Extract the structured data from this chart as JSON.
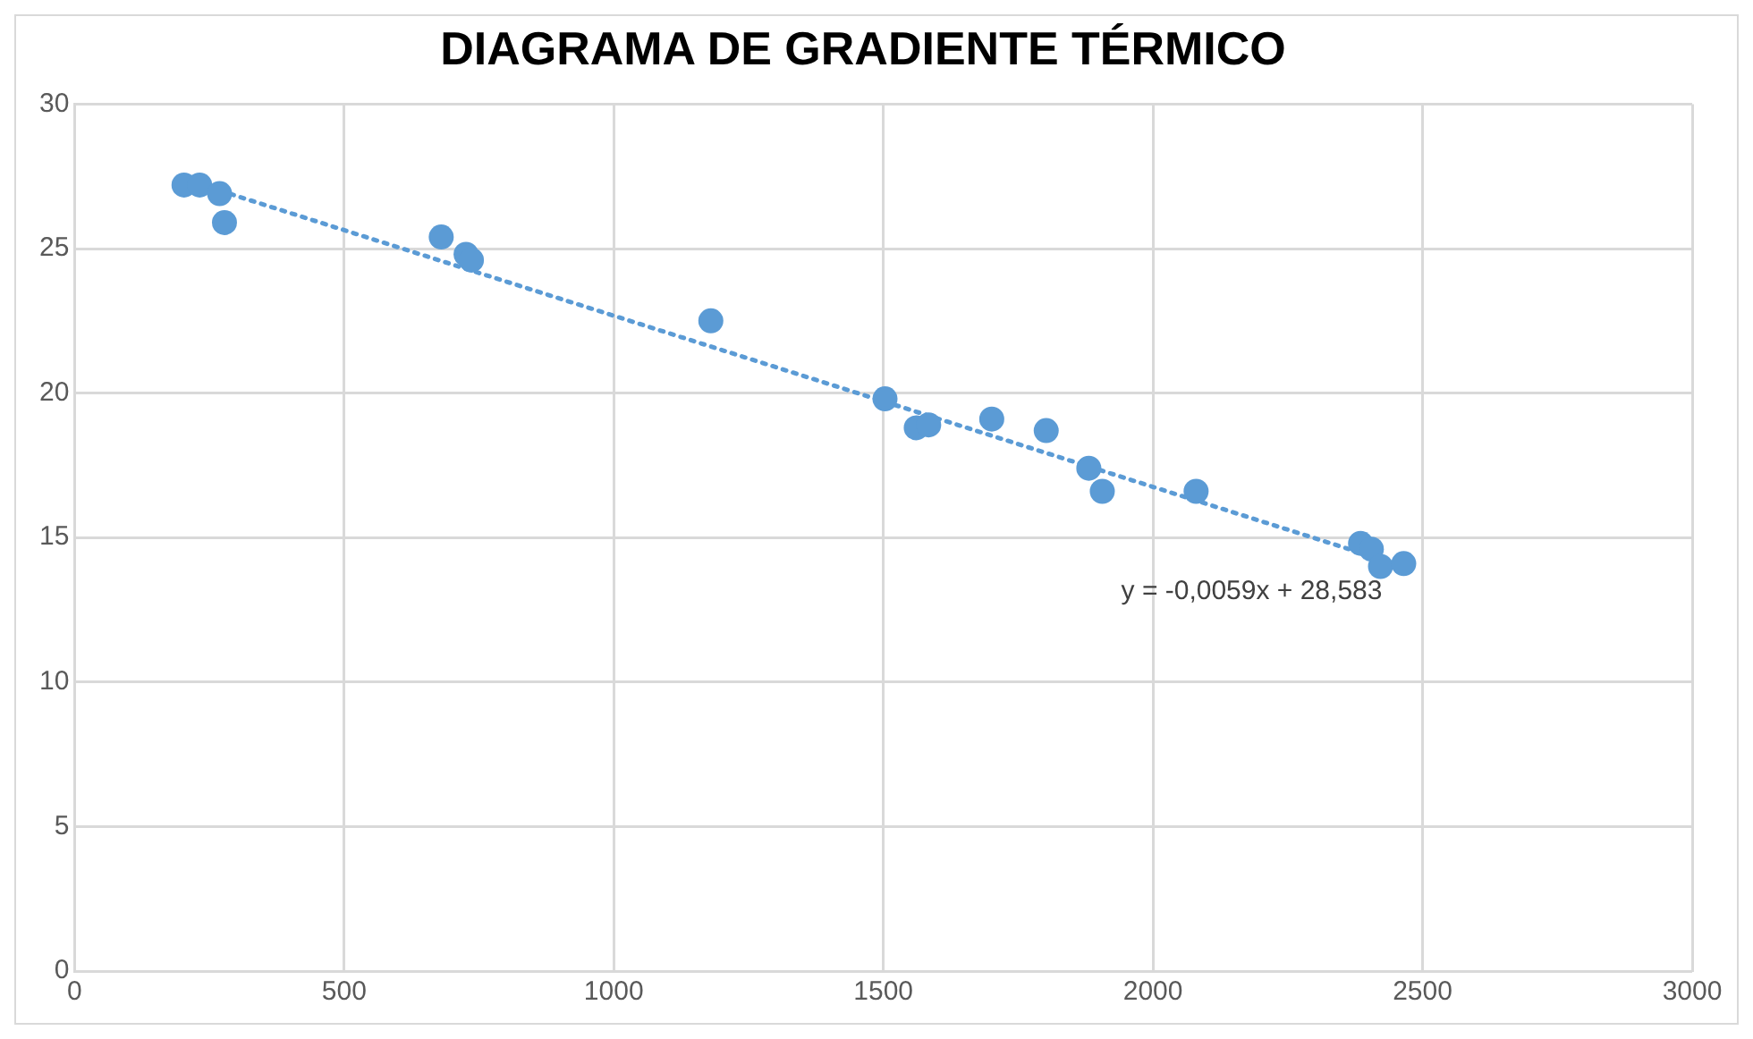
{
  "chart_data": {
    "type": "scatter",
    "title": "DIAGRAMA DE GRADIENTE TÉRMICO",
    "series": [
      {
        "type": "scatter",
        "color": "#5b9bd5",
        "marker": "circle",
        "x": [
          203,
          232,
          269,
          278,
          680,
          726,
          736,
          1180,
          1503,
          1561,
          1584,
          1701,
          1802,
          1881,
          1906,
          2080,
          2385,
          2405,
          2422,
          2465
        ],
        "values": [
          27.2,
          27.2,
          26.9,
          25.9,
          25.4,
          24.8,
          24.6,
          22.5,
          19.8,
          18.8,
          18.9,
          19.1,
          18.7,
          17.4,
          16.6,
          16.6,
          14.8,
          14.6,
          14.0,
          14.1
        ]
      },
      {
        "type": "line",
        "color": "#5b9bd5",
        "marker": "none",
        "line_style": "dotted",
        "x": [
          270,
          2465
        ],
        "values": [
          27.0,
          14.0
        ]
      }
    ],
    "annotations": [
      "y = -0,0059x + 28,583"
    ],
    "xlim": [
      0,
      3000
    ],
    "xticks": [
      0,
      500,
      1000,
      1500,
      2000,
      2500,
      3000
    ],
    "ylim": [
      0,
      30
    ],
    "yticks": [
      0,
      5,
      10,
      15,
      20,
      25,
      30
    ],
    "grid": true,
    "legend": false
  }
}
